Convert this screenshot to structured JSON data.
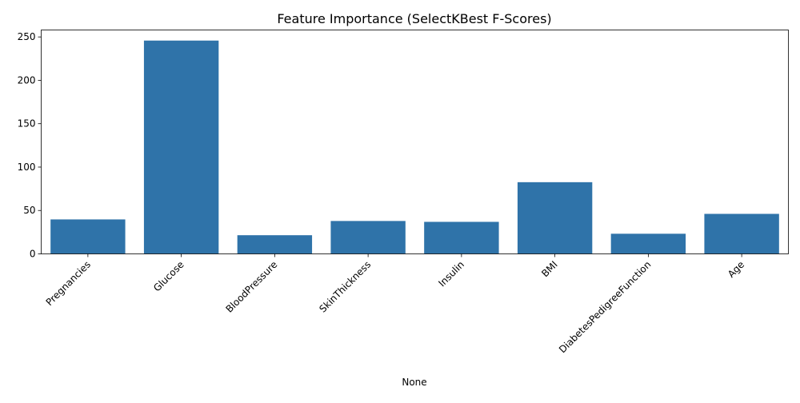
{
  "chart_data": {
    "type": "bar",
    "title": "Feature Importance (SelectKBest F-Scores)",
    "xlabel": "None",
    "ylabel": "",
    "categories": [
      "Pregnancies",
      "Glucose",
      "BloodPressure",
      "SkinThickness",
      "Insulin",
      "BMI",
      "DiabetesPedigreeFunction",
      "Age"
    ],
    "values": [
      39.7,
      245.8,
      21.5,
      37.9,
      36.9,
      82.6,
      23.2,
      46.1
    ],
    "yticks": [
      0,
      50,
      100,
      150,
      200,
      250
    ],
    "ylim": [
      0,
      258
    ],
    "bar_color": "#2f73a9",
    "grid": false,
    "legend": "none"
  }
}
